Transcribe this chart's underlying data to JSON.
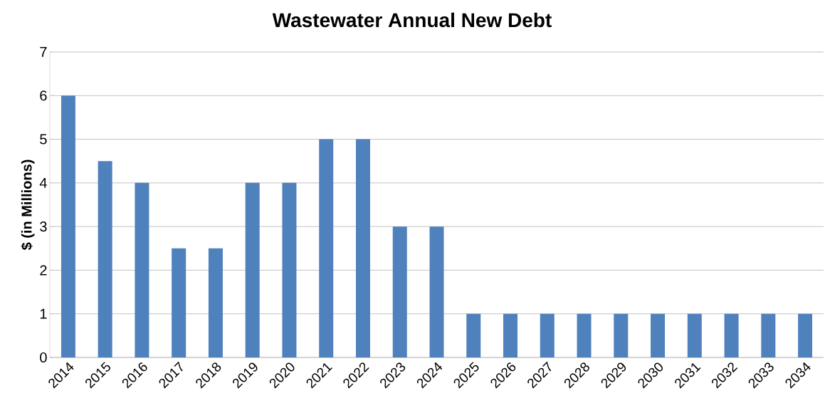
{
  "chart_data": {
    "type": "bar",
    "title": "Wastewater Annual New Debt",
    "ylabel": "$ (in Millions)",
    "categories": [
      "2014",
      "2015",
      "2016",
      "2017",
      "2018",
      "2019",
      "2020",
      "2021",
      "2022",
      "2023",
      "2024",
      "2025",
      "2026",
      "2027",
      "2028",
      "2029",
      "2030",
      "2031",
      "2032",
      "2033",
      "2034"
    ],
    "values": [
      6,
      4.5,
      4,
      2.5,
      2.5,
      4,
      4,
      5,
      5,
      3,
      3,
      1,
      1,
      1,
      1,
      1,
      1,
      1,
      1,
      1,
      1
    ],
    "color": "#4f81bd",
    "ylim": [
      0,
      7
    ],
    "yticks": [
      0,
      1,
      2,
      3,
      4,
      5,
      6,
      7
    ],
    "grid": "y"
  }
}
